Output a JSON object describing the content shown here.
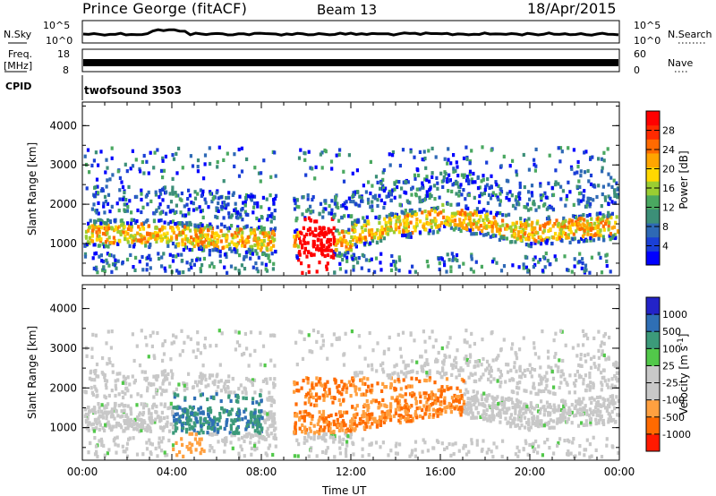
{
  "header": {
    "station": "Prince George (fitACF)",
    "beam": "Beam 13",
    "date": "18/Apr/2015"
  },
  "top_panels": {
    "nsky_label": "N.Sky",
    "nsearch_label": "N.Search",
    "nsky_ticks": [
      "10^5",
      "10^0"
    ],
    "freq_label": "Freq.",
    "freq_unit": "[MHz]",
    "freq_ticks": [
      "18",
      "8"
    ],
    "nave_label": "Nave",
    "nave_ticks": [
      "60",
      "0"
    ],
    "cpid_label": "CPID",
    "cpid_value": "twofsound 3503"
  },
  "chart_data": [
    {
      "type": "heatmap",
      "panel": "power",
      "ylabel": "Slant Range [km]",
      "y_ticks": [
        "4000",
        "3000",
        "2000",
        "1000"
      ],
      "ylim": [
        180,
        4600
      ],
      "xlim": [
        0,
        24
      ],
      "colorbar_label": "Power [dB]",
      "colorbar_ticks": [
        "28",
        "24",
        "20",
        "16",
        "12",
        "8",
        "4"
      ],
      "colorscale": [
        "#0000ff",
        "#1a3fd6",
        "#2e69b5",
        "#3c8f78",
        "#4aa860",
        "#9acd32",
        "#ffd700",
        "#ffa500",
        "#ff6a00",
        "#ff2a00",
        "#ff0000"
      ]
    },
    {
      "type": "heatmap",
      "panel": "velocity",
      "ylabel": "Slant Range [km]",
      "y_ticks": [
        "4000",
        "3000",
        "2000",
        "1000"
      ],
      "ylim": [
        180,
        4600
      ],
      "xlim": [
        0,
        24
      ],
      "xlabel": "Time UT",
      "x_ticks": [
        "00:00",
        "04:00",
        "08:00",
        "12:00",
        "16:00",
        "20:00",
        "00:00"
      ],
      "colorbar_label": "Velocity [m s",
      "colorbar_label_sup": "-1",
      "colorbar_label_end": "]",
      "colorbar_ticks": [
        "1000",
        "500",
        "100",
        "25",
        "-25",
        "-100",
        "-500",
        "-1000"
      ],
      "colorscale": [
        "#2323c8",
        "#2f6fb5",
        "#3c9a7a",
        "#52c84a",
        "#c8c8c8",
        "#c8c8c8",
        "#ffa040",
        "#ff6a00",
        "#ff1a00"
      ]
    }
  ]
}
